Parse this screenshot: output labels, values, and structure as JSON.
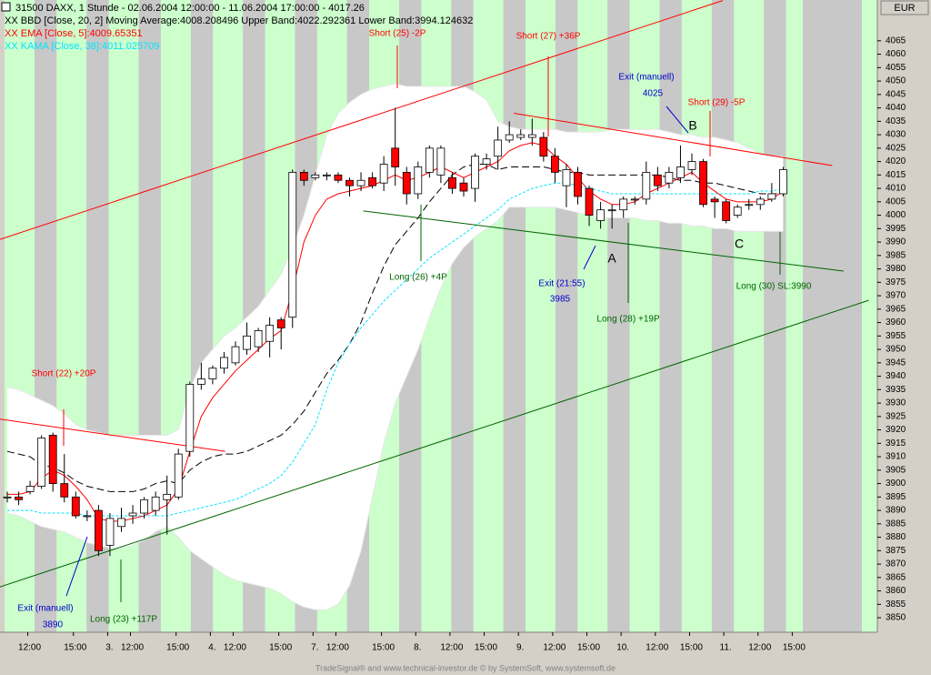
{
  "title": "31500  DAXX, 1 Stunde - 02.06.2004 12:00:00 - 11.06.2004 17:00:00 - 4017.26",
  "currency": "EUR",
  "footer": "TradeSignal® and www.technical-investor.de © by SystemSoft, www.systemsoft.de",
  "chart_data": {
    "type": "candlestick",
    "categories": [
      null,
      "12:00",
      null,
      null,
      null,
      "15:00",
      null,
      null,
      "3.",
      null,
      "12:00",
      null,
      null,
      null,
      "15:00",
      null,
      null,
      "4.",
      null,
      "12:00",
      null,
      null,
      null,
      "15:00",
      null,
      null,
      "7.",
      null,
      "12:00",
      null,
      null,
      null,
      "15:00",
      null,
      null,
      "8.",
      null,
      null,
      "12:00",
      null,
      null,
      "15:00",
      null,
      null,
      "9.",
      null,
      null,
      "12:00",
      null,
      null,
      "15:00",
      null,
      null,
      "10.",
      null,
      null,
      "12:00",
      null,
      null,
      "15:00",
      null,
      null,
      "11.",
      null,
      null,
      "12:00",
      null,
      null,
      "15:00"
    ],
    "open": [
      3895,
      3895,
      3897,
      3899,
      3918,
      3900,
      3895,
      3888,
      3890,
      3877,
      3884,
      3888,
      3889,
      3890,
      3894,
      3895,
      3912,
      3937,
      3939,
      3943,
      3945,
      3950,
      3951,
      3953,
      3961,
      3962,
      4016,
      4014,
      4015,
      4015,
      4013,
      4011,
      4014,
      4012,
      4025,
      4016,
      4008,
      4016,
      4015,
      4014,
      4012,
      4010,
      4019,
      4022,
      4028,
      4029,
      4029,
      4029,
      4022,
      4011,
      4016,
      4010,
      3998,
      4002,
      4002,
      4006,
      4006,
      4015,
      4012,
      4014,
      4017,
      4020,
      4006,
      4005,
      4000,
      4004,
      4004,
      4006,
      4008
    ],
    "high": [
      3897,
      3897,
      3901,
      3918,
      3919,
      3911,
      3897,
      3890,
      3892,
      3889,
      3891,
      3892,
      3895,
      3897,
      3903,
      3913,
      3938,
      3945,
      3944,
      3949,
      3953,
      3960,
      3958,
      3962,
      3962,
      4017,
      4017,
      4016,
      4016,
      4016,
      4014,
      4016,
      4016,
      4022,
      4040,
      4018,
      4020,
      4026,
      4026,
      4016,
      4014,
      4023,
      4023,
      4033,
      4035,
      4032,
      4036,
      4031,
      4025,
      4019,
      4018,
      4011,
      4005,
      4004,
      4007,
      4007,
      4020,
      4018,
      4018,
      4026,
      4023,
      4021,
      4007,
      4006,
      4004,
      4006,
      4007,
      4012,
      4018
    ],
    "low": [
      3893,
      3892,
      3896,
      3898,
      3897,
      3893,
      3887,
      3886,
      3873,
      3873,
      3882,
      3885,
      3887,
      3888,
      3881,
      3894,
      3910,
      3935,
      3937,
      3941,
      3944,
      3948,
      3949,
      3947,
      3950,
      3958,
      4011,
      4013,
      4013,
      4012,
      4007,
      4009,
      4010,
      4009,
      4011,
      4004,
      4006,
      4014,
      4012,
      4008,
      4007,
      4005,
      4017,
      4017,
      4027,
      4028,
      4026,
      4020,
      4012,
      4003,
      4004,
      3996,
      3995,
      3995,
      3999,
      4004,
      4004,
      4009,
      4010,
      4012,
      4015,
      4003,
      3999,
      3997,
      3999,
      4002,
      4002,
      4005,
      4007
    ],
    "close": [
      3895,
      3894,
      3899,
      3917,
      3900,
      3895,
      3888,
      3888,
      3875,
      3887,
      3887,
      3889,
      3894,
      3895,
      3896,
      3911,
      3937,
      3939,
      3943,
      3947,
      3951,
      3955,
      3957,
      3959,
      3958,
      4016,
      4013,
      4015,
      4015,
      4013,
      4011,
      4013,
      4011,
      4019,
      4018,
      4008,
      4018,
      4025,
      4025,
      4010,
      4009,
      4022,
      4021,
      4028,
      4030,
      4030,
      4030,
      4022,
      4016,
      4017,
      4007,
      4000,
      4002,
      4002,
      4006,
      4006,
      4016,
      4011,
      4016,
      4018,
      4020,
      4004,
      4005,
      3998,
      4003,
      4004,
      4006,
      4008,
      4017
    ],
    "up_color": "#ffffff",
    "down_color": "#ff0000",
    "bands": {
      "name": "XX BBD [Close, 20, 2] Moving Average:4008.208496 Upper Band:4022.292361 Lower Band:3994.124632",
      "color": "#000000",
      "upper": [
        3936,
        3935,
        3933,
        3931,
        3929,
        3926,
        3922,
        3920,
        3919,
        3918,
        3918,
        3918,
        3918,
        3918,
        3918,
        3920,
        3935,
        3945,
        3950,
        3955,
        3958,
        3962,
        3966,
        3972,
        3978,
        3988,
        4000,
        4015,
        4030,
        4038,
        4042,
        4045,
        4047,
        4048,
        4049,
        4048,
        4048,
        4048,
        4048,
        4048,
        4048,
        4046,
        4043,
        4035,
        4033,
        4032,
        4032,
        4032,
        4032,
        4031,
        4031,
        4031,
        4031,
        4032,
        4032,
        4032,
        4032,
        4032,
        4031,
        4030,
        4030,
        4029,
        4029,
        4028,
        4027,
        4025,
        4023,
        4022,
        4022
      ],
      "middle": [
        3912,
        3911,
        3910,
        3907,
        3906,
        3904,
        3901,
        3899,
        3898,
        3897,
        3897,
        3897,
        3898,
        3900,
        3901,
        3900,
        3905,
        3908,
        3910,
        3911,
        3911,
        3912,
        3914,
        3916,
        3918,
        3922,
        3927,
        3934,
        3941,
        3946,
        3952,
        3960,
        3971,
        3981,
        3989,
        3994,
        3999,
        4005,
        4010,
        4015,
        4018,
        4019,
        4019,
        4017,
        4018,
        4018,
        4018,
        4018,
        4017,
        4016,
        4016,
        4015,
        4015,
        4015,
        4015,
        4015,
        4015,
        4015,
        4014,
        4013,
        4013,
        4012,
        4012,
        4011,
        4010,
        4009,
        4008,
        4008,
        4008
      ],
      "lower": [
        3889,
        3888,
        3886,
        3884,
        3883,
        3882,
        3880,
        3878,
        3877,
        3876,
        3876,
        3877,
        3879,
        3882,
        3884,
        3880,
        3875,
        3872,
        3869,
        3866,
        3864,
        3863,
        3862,
        3861,
        3859,
        3856,
        3854,
        3853,
        3853,
        3855,
        3862,
        3875,
        3895,
        3915,
        3930,
        3940,
        3950,
        3962,
        3973,
        3982,
        3988,
        3992,
        3995,
        3998,
        4003,
        4003,
        4003,
        4003,
        4003,
        4002,
        4001,
        4000,
        3999,
        3999,
        3999,
        3999,
        3998,
        3998,
        3997,
        3997,
        3996,
        3996,
        3995,
        3995,
        3994,
        3994,
        3994,
        3994,
        3994
      ]
    },
    "series": [
      {
        "name": "XX EMA [Close, 5]:4009.65351",
        "color": "#ff0000",
        "values": [
          3896,
          3896,
          3897,
          3902,
          3905,
          3903,
          3899,
          3894,
          3887,
          3886,
          3886,
          3887,
          3888,
          3890,
          3892,
          3898,
          3912,
          3925,
          3932,
          3937,
          3942,
          3946,
          3950,
          3954,
          3957,
          3972,
          3990,
          4000,
          4006,
          4008,
          4009,
          4010,
          4011,
          4013,
          4015,
          4013,
          4014,
          4016,
          4018,
          4016,
          4014,
          4016,
          4018,
          4020,
          4024,
          4026,
          4027,
          4026,
          4022,
          4019,
          4014,
          4009,
          4006,
          4004,
          4004,
          4005,
          4008,
          4010,
          4012,
          4014,
          4016,
          4012,
          4009,
          4006,
          4005,
          4005,
          4005,
          4006,
          4009
        ]
      },
      {
        "name": "XX KAMA [Close, 38]:4011.025709",
        "color": "#00e5ff",
        "values": [
          3890,
          3890,
          3890,
          3889,
          3889,
          3889,
          3889,
          3888,
          3888,
          3888,
          3888,
          3888,
          3888,
          3888,
          3888,
          3889,
          3890,
          3891,
          3892,
          3893,
          3894,
          3896,
          3898,
          3900,
          3903,
          3908,
          3915,
          3922,
          3935,
          3945,
          3952,
          3958,
          3963,
          3968,
          3972,
          3976,
          3980,
          3984,
          3987,
          3990,
          3993,
          3996,
          3999,
          4002,
          4006,
          4008,
          4010,
          4011,
          4012,
          4012,
          4011,
          4010,
          4009,
          4008,
          4008,
          4008,
          4008,
          4008,
          4008,
          4008,
          4008,
          4008,
          4008,
          4008,
          4008,
          4008,
          4009,
          4009,
          4010
        ]
      }
    ],
    "trendlines": [
      {
        "color": "#ff0000",
        "x": [
          -0.64,
          62.7
        ],
        "y": [
          3991,
          4080
        ]
      },
      {
        "color": "#ff0000",
        "x": [
          -0.64,
          19.1
        ],
        "y": [
          3924,
          3912
        ]
      },
      {
        "color": "#ff0000",
        "x": [
          44.4,
          72.3
        ],
        "y": [
          4038,
          4018.5
        ]
      },
      {
        "color": "#006400",
        "x": [
          31.2,
          73.3
        ],
        "y": [
          4001.6,
          3979.2
        ]
      },
      {
        "color": "#006400",
        "x": [
          -0.64,
          75.5
        ],
        "y": [
          3861.5,
          3968.3
        ]
      }
    ],
    "annotations": [
      {
        "text": "Short (22) +20P",
        "color": "#ff0000"
      },
      {
        "text": "Short (25) -2P",
        "color": "#ff0000"
      },
      {
        "text": "Short (27) +36P",
        "color": "#ff0000"
      },
      {
        "text": "Exit (manuell)",
        "color": "#0000cc"
      },
      {
        "text": "4025",
        "color": "#0000cc"
      },
      {
        "text": "B",
        "color": "#000000"
      },
      {
        "text": "Short (29) -5P",
        "color": "#ff0000"
      },
      {
        "text": "Long (26) +4P",
        "color": "#006400"
      },
      {
        "text": "Exit (21:55)",
        "color": "#0000cc"
      },
      {
        "text": "3985",
        "color": "#0000cc"
      },
      {
        "text": "A",
        "color": "#000000"
      },
      {
        "text": "Long (28) +19P",
        "color": "#006400"
      },
      {
        "text": "C",
        "color": "#000000"
      },
      {
        "text": "Long (30) SL:3990",
        "color": "#006400"
      },
      {
        "text": "Exit (manuell)",
        "color": "#0000cc"
      },
      {
        "text": "3890",
        "color": "#0000cc"
      },
      {
        "text": "Long (23) +117P",
        "color": "#006400"
      }
    ],
    "ylim": [
      3844.6,
      4074.1
    ],
    "yticks": [
      3850,
      3855,
      3860,
      3865,
      3870,
      3875,
      3880,
      3885,
      3890,
      3895,
      3900,
      3905,
      3910,
      3915,
      3920,
      3925,
      3930,
      3935,
      3940,
      3945,
      3950,
      3955,
      3960,
      3965,
      3970,
      3975,
      3980,
      3985,
      3990,
      3995,
      4000,
      4005,
      4010,
      4015,
      4020,
      4025,
      4030,
      4035,
      4040,
      4045,
      4050,
      4055,
      4060,
      4065
    ]
  }
}
